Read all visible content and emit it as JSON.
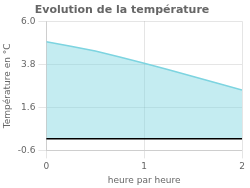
{
  "chart_data": {
    "type": "area",
    "title": "Evolution de la température",
    "x_label": "heure par heure",
    "y_label": "Température en °C",
    "x": [
      0,
      0.25,
      0.5,
      0.75,
      1.0,
      1.25,
      1.5,
      1.75,
      2.0
    ],
    "values": [
      4.95,
      4.72,
      4.48,
      4.17,
      3.85,
      3.52,
      3.18,
      2.83,
      2.48
    ],
    "color": "#7dd4e0",
    "xlim": [
      0,
      2
    ],
    "ylim": [
      -0.6,
      6.0
    ],
    "xticks": [
      0,
      1,
      2
    ],
    "yticks": [
      -0.6,
      1.6,
      3.8,
      {
        "value": 6.0,
        "label": "6.0"
      }
    ],
    "grid": true
  }
}
